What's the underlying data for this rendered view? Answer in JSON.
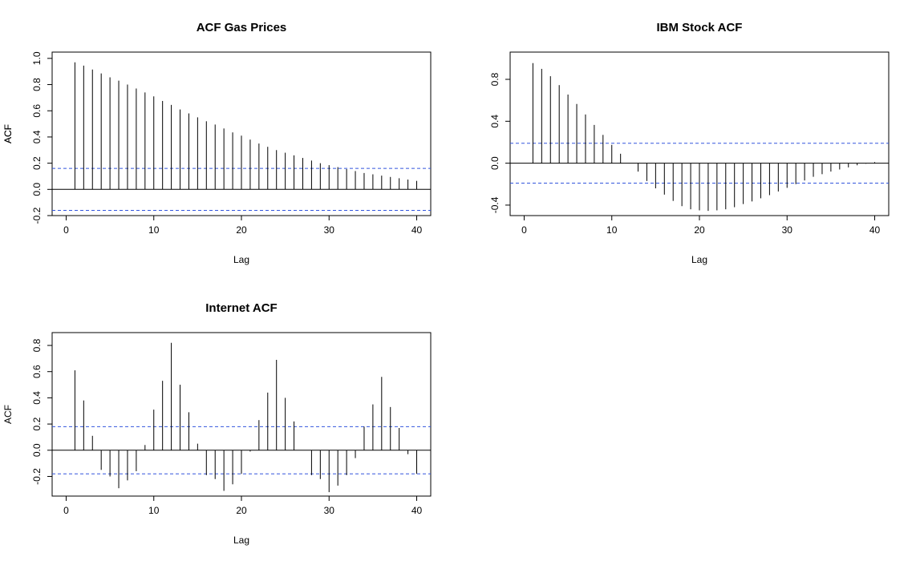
{
  "chart_data": [
    {
      "type": "bar",
      "subtype": "acf-stem",
      "title": "ACF Gas Prices",
      "xlabel": "Lag",
      "ylabel": "ACF",
      "xlim": [
        0,
        40
      ],
      "ylim": [
        -0.2,
        1.0
      ],
      "xticks": [
        0,
        10,
        20,
        30,
        40
      ],
      "yticks": [
        -0.2,
        0.0,
        0.2,
        0.4,
        0.6,
        0.8,
        1.0
      ],
      "xtick_labels": [
        "0",
        "10",
        "20",
        "30",
        "40"
      ],
      "ytick_labels": [
        "-0.2",
        "0.0",
        "0.2",
        "0.4",
        "0.6",
        "0.8",
        "1.0"
      ],
      "confidence_band": 0.16,
      "band_color": "#3355dd",
      "lags": [
        1,
        2,
        3,
        4,
        5,
        6,
        7,
        8,
        9,
        10,
        11,
        12,
        13,
        14,
        15,
        16,
        17,
        18,
        19,
        20,
        21,
        22,
        23,
        24,
        25,
        26,
        27,
        28,
        29,
        30,
        31,
        32,
        33,
        34,
        35,
        36,
        37,
        38,
        39,
        40
      ],
      "values": [
        0.97,
        0.945,
        0.915,
        0.885,
        0.855,
        0.83,
        0.8,
        0.77,
        0.74,
        0.71,
        0.675,
        0.645,
        0.61,
        0.58,
        0.55,
        0.52,
        0.495,
        0.465,
        0.435,
        0.41,
        0.38,
        0.35,
        0.325,
        0.3,
        0.28,
        0.26,
        0.24,
        0.22,
        0.2,
        0.185,
        0.17,
        0.155,
        0.14,
        0.125,
        0.115,
        0.105,
        0.095,
        0.085,
        0.075,
        0.065
      ]
    },
    {
      "type": "bar",
      "subtype": "acf-stem",
      "title": "IBM Stock ACF",
      "xlabel": "Lag",
      "ylabel": "ACF",
      "xlim": [
        0,
        40
      ],
      "ylim": [
        -0.5,
        1.0
      ],
      "xticks": [
        0,
        10,
        20,
        30,
        40
      ],
      "yticks": [
        -0.4,
        0.0,
        0.4,
        0.8
      ],
      "xtick_labels": [
        "0",
        "10",
        "20",
        "30",
        "40"
      ],
      "ytick_labels": [
        "-0.4",
        "0.0",
        "0.4",
        "0.8"
      ],
      "confidence_band": 0.19,
      "band_color": "#3355dd",
      "lags": [
        1,
        2,
        3,
        4,
        5,
        6,
        7,
        8,
        9,
        10,
        11,
        12,
        13,
        14,
        15,
        16,
        17,
        18,
        19,
        20,
        21,
        22,
        23,
        24,
        25,
        26,
        27,
        28,
        29,
        30,
        31,
        32,
        33,
        34,
        35,
        36,
        37,
        38,
        39,
        40
      ],
      "values": [
        0.955,
        0.9,
        0.83,
        0.745,
        0.655,
        0.565,
        0.465,
        0.365,
        0.27,
        0.175,
        0.09,
        0.0,
        -0.08,
        -0.17,
        -0.24,
        -0.3,
        -0.36,
        -0.41,
        -0.44,
        -0.45,
        -0.455,
        -0.45,
        -0.44,
        -0.42,
        -0.39,
        -0.365,
        -0.335,
        -0.305,
        -0.27,
        -0.235,
        -0.2,
        -0.165,
        -0.13,
        -0.105,
        -0.08,
        -0.06,
        -0.04,
        -0.02,
        -0.005,
        0.01
      ]
    },
    {
      "type": "bar",
      "subtype": "acf-stem",
      "title": "Internet ACF",
      "xlabel": "Lag",
      "ylabel": "ACF",
      "xlim": [
        0,
        40
      ],
      "ylim": [
        -0.35,
        0.85
      ],
      "xticks": [
        0,
        10,
        20,
        30,
        40
      ],
      "yticks": [
        -0.2,
        0.0,
        0.2,
        0.4,
        0.6,
        0.8
      ],
      "xtick_labels": [
        "0",
        "10",
        "20",
        "30",
        "40"
      ],
      "ytick_labels": [
        "-0.2",
        "0.0",
        "0.2",
        "0.4",
        "0.6",
        "0.8"
      ],
      "confidence_band": 0.18,
      "band_color": "#3355dd",
      "lags": [
        1,
        2,
        3,
        4,
        5,
        6,
        7,
        8,
        9,
        10,
        11,
        12,
        13,
        14,
        15,
        16,
        17,
        18,
        19,
        20,
        21,
        22,
        23,
        24,
        25,
        26,
        27,
        28,
        29,
        30,
        31,
        32,
        33,
        34,
        35,
        36,
        37,
        38,
        39,
        40
      ],
      "values": [
        0.61,
        0.38,
        0.11,
        -0.15,
        -0.2,
        -0.29,
        -0.23,
        -0.16,
        0.04,
        0.31,
        0.53,
        0.82,
        0.5,
        0.29,
        0.05,
        -0.19,
        -0.22,
        -0.31,
        -0.26,
        -0.18,
        -0.01,
        0.23,
        0.44,
        0.69,
        0.4,
        0.22,
        0.0,
        -0.19,
        -0.22,
        -0.32,
        -0.27,
        -0.19,
        -0.06,
        0.18,
        0.35,
        0.56,
        0.33,
        0.17,
        -0.03,
        -0.18
      ]
    }
  ]
}
